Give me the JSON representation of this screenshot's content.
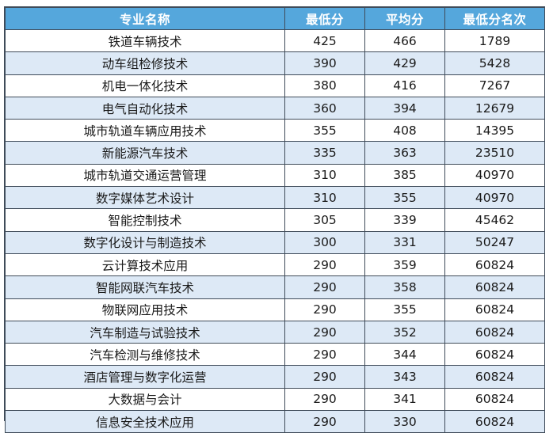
{
  "table": {
    "headers": [
      "专业名称",
      "最低分",
      "平均分",
      "最低分名次"
    ],
    "rows": [
      [
        "铁道车辆技术",
        "425",
        "466",
        "1789"
      ],
      [
        "动车组检修技术",
        "390",
        "429",
        "5428"
      ],
      [
        "机电一体化技术",
        "380",
        "416",
        "7267"
      ],
      [
        "电气自动化技术",
        "360",
        "394",
        "12679"
      ],
      [
        "城市轨道车辆应用技术",
        "355",
        "408",
        "14395"
      ],
      [
        "新能源汽车技术",
        "335",
        "363",
        "23510"
      ],
      [
        "城市轨道交通运营管理",
        "310",
        "385",
        "40970"
      ],
      [
        "数字媒体艺术设计",
        "310",
        "355",
        "40970"
      ],
      [
        "智能控制技术",
        "305",
        "339",
        "45462"
      ],
      [
        "数字化设计与制造技术",
        "300",
        "331",
        "50247"
      ],
      [
        "云计算技术应用",
        "290",
        "359",
        "60824"
      ],
      [
        "智能网联汽车技术",
        "290",
        "358",
        "60824"
      ],
      [
        "物联网应用技术",
        "290",
        "355",
        "60824"
      ],
      [
        "汽车制造与试验技术",
        "290",
        "352",
        "60824"
      ],
      [
        "汽车检测与维修技术",
        "290",
        "344",
        "60824"
      ],
      [
        "酒店管理与数字化运营",
        "290",
        "343",
        "60824"
      ],
      [
        "大数据与会计",
        "290",
        "341",
        "60824"
      ],
      [
        "信息安全技术应用",
        "290",
        "330",
        "60824"
      ]
    ]
  },
  "colors": {
    "header_bg": "#55a7dc",
    "header_text": "#ffffff",
    "row_alt_bg": "#dde9f6",
    "border": "#3f4b59"
  }
}
